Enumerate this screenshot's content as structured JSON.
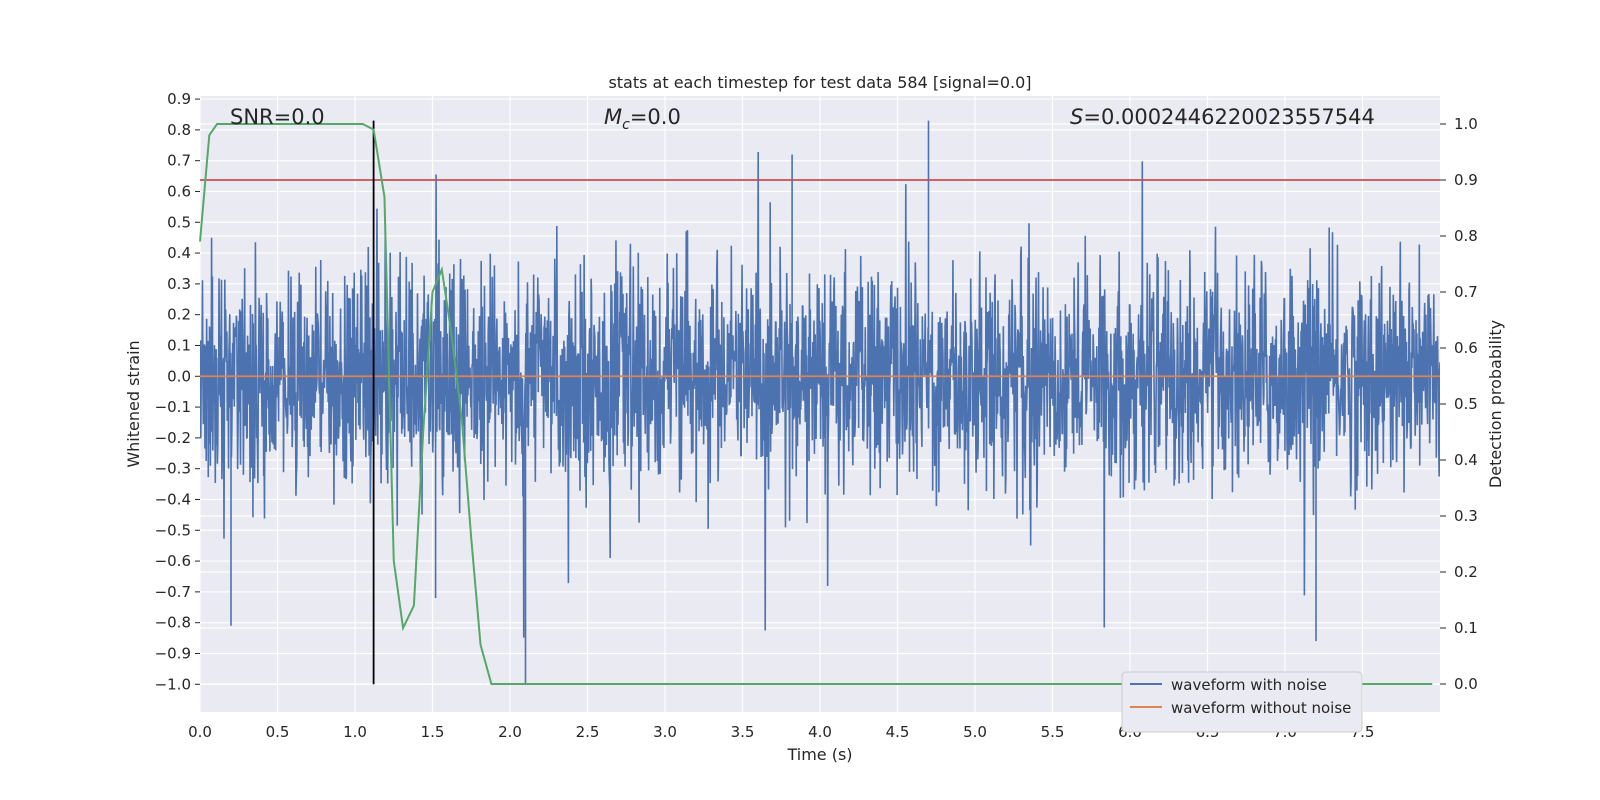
{
  "chart_data": {
    "type": "line",
    "title": "stats at each timestep for test data 584 [signal=0.0]",
    "xlabel": "Time (s)",
    "ylabel": "Whitened strain",
    "y2label": "Detection probability",
    "xlim": [
      0.0,
      8.0
    ],
    "ylim": [
      -1.09,
      0.91
    ],
    "y2lim": [
      -0.05,
      1.05
    ],
    "xticks": [
      "0.0",
      "0.5",
      "1.0",
      "1.5",
      "2.0",
      "2.5",
      "3.0",
      "3.5",
      "4.0",
      "4.5",
      "5.0",
      "5.5",
      "6.0",
      "6.5",
      "7.0",
      "7.5"
    ],
    "yticks": [
      "0.9",
      "0.8",
      "0.7",
      "0.6",
      "0.5",
      "0.4",
      "0.3",
      "0.2",
      "0.1",
      "0.0",
      "−0.1",
      "−0.2",
      "−0.3",
      "−0.4",
      "−0.5",
      "−0.6",
      "−0.7",
      "−0.8",
      "−0.9",
      "−1.0"
    ],
    "y2ticks": [
      "1.0",
      "0.9",
      "0.8",
      "0.7",
      "0.6",
      "0.5",
      "0.4",
      "0.3",
      "0.2",
      "0.1",
      "0.0"
    ],
    "annotations": {
      "snr": "SNR=0.0",
      "mc_symbol": "M",
      "mc_sub": "c",
      "mc_value": "=0.0",
      "s_symbol": "S",
      "s_value": "=0.0002446220023557544"
    },
    "series": [
      {
        "name": "waveform with noise",
        "color": "#4c72b0",
        "axis": "left",
        "style": "dense noise, amplitude ~0.4 typical, peaks to ~0.83 and ~-1.0"
      },
      {
        "name": "waveform without noise",
        "color": "#dd8452",
        "axis": "left",
        "x": [
          0.0,
          8.0
        ],
        "y": [
          0.0,
          0.0
        ]
      },
      {
        "name": "detection probability",
        "color": "#55a868",
        "axis": "right",
        "x": [
          0.0,
          0.06,
          0.11,
          0.19,
          0.3,
          0.6,
          0.9,
          1.05,
          1.12,
          1.19,
          1.25,
          1.31,
          1.38,
          1.44,
          1.5,
          1.56,
          1.62,
          1.69,
          1.75,
          1.81,
          1.88,
          1.94,
          2.0,
          2.5,
          3.0,
          3.5,
          4.0,
          5.0,
          6.0,
          7.0,
          7.95
        ],
        "y": [
          0.79,
          0.98,
          1.0,
          1.0,
          1.0,
          1.0,
          1.0,
          1.0,
          0.99,
          0.87,
          0.22,
          0.1,
          0.14,
          0.45,
          0.7,
          0.74,
          0.63,
          0.47,
          0.26,
          0.07,
          0.0,
          0.0,
          0.0,
          0.0,
          0.0,
          0.0,
          0.0,
          0.0,
          0.0,
          0.0,
          0.0
        ]
      },
      {
        "name": "threshold",
        "color": "#c44e52",
        "axis": "right",
        "y": 0.9
      },
      {
        "name": "marker",
        "color": "#000000",
        "axis": "left",
        "x": 1.12,
        "y_range": [
          -1.0,
          0.83
        ]
      }
    ],
    "legend": {
      "position": "lower-right",
      "entries": [
        {
          "label": "waveform with noise",
          "color": "#4c72b0"
        },
        {
          "label": "waveform without noise",
          "color": "#dd8452"
        }
      ]
    },
    "grid": true,
    "colors": {
      "plot_bg": "#eaeaf2",
      "grid": "#ffffff",
      "text": "#262626"
    }
  }
}
